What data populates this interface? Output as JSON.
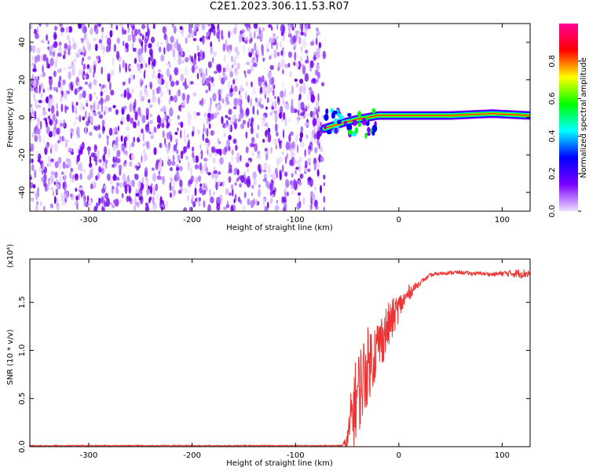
{
  "title": "C2E1.2023.306.11.53.R07",
  "chart_data": [
    {
      "type": "heatmap",
      "title": "C2E1.2023.306.11.53.R07",
      "xlabel": "Height of straight line (km)",
      "ylabel": "Frequency (Hz)",
      "xlim": [
        -357,
        127
      ],
      "ylim": [
        -50,
        50
      ],
      "xticks": [
        -300,
        -200,
        -100,
        0,
        100
      ],
      "yticks": [
        -40,
        -20,
        0,
        20,
        40
      ],
      "noise_region_x": [
        -357,
        -72
      ],
      "signal_line": [
        {
          "x": -72,
          "y": -6
        },
        {
          "x": -55,
          "y": -3
        },
        {
          "x": -40,
          "y": -1
        },
        {
          "x": -20,
          "y": 1
        },
        {
          "x": 0,
          "y": 1
        },
        {
          "x": 50,
          "y": 1
        },
        {
          "x": 90,
          "y": 2
        },
        {
          "x": 127,
          "y": 1
        }
      ],
      "colorbar": {
        "label": "Normalized spectral amplitude",
        "range": [
          0.0,
          1.0
        ],
        "ticks": [
          0.0,
          0.2,
          0.4,
          0.6,
          0.8
        ],
        "colors": [
          "#f0dfff",
          "#7b00ff",
          "#0000ff",
          "#00ffff",
          "#00ff00",
          "#ffff00",
          "#ff0000",
          "#ff0099"
        ]
      },
      "grid": false
    },
    {
      "type": "line",
      "xlabel": "Height of straight line (km)",
      "ylabel": "SNR (10 * v/v)",
      "yscale_label": "(x10⁴)",
      "xlim": [
        -357,
        127
      ],
      "ylim": [
        0,
        1.95
      ],
      "xticks": [
        -300,
        -200,
        -100,
        0,
        100
      ],
      "yticks": [
        0.0,
        0.5,
        1.0,
        1.5
      ],
      "series": [
        {
          "color": "#ee3333",
          "x": [
            -357,
            -300,
            -200,
            -100,
            -55,
            -50,
            -45,
            -40,
            -35,
            -30,
            -25,
            -20,
            -15,
            -10,
            -5,
            0,
            5,
            10,
            15,
            20,
            25,
            30,
            40,
            50,
            60,
            70,
            80,
            90,
            100,
            110,
            120,
            127
          ],
          "y": [
            0.01,
            0.01,
            0.01,
            0.01,
            0.01,
            0.05,
            0.35,
            0.55,
            0.7,
            0.85,
            0.95,
            1.05,
            1.15,
            1.25,
            1.35,
            1.45,
            1.52,
            1.6,
            1.65,
            1.7,
            1.74,
            1.78,
            1.8,
            1.81,
            1.81,
            1.8,
            1.8,
            1.79,
            1.8,
            1.8,
            1.8,
            1.8
          ],
          "noise_amp": [
            0,
            0,
            0,
            0,
            0,
            0.1,
            0.4,
            0.45,
            0.45,
            0.4,
            0.35,
            0.3,
            0.28,
            0.25,
            0.2,
            0.15,
            0.1,
            0.08,
            0.05,
            0.03,
            0.02,
            0.02,
            0.02,
            0.02,
            0.02,
            0.02,
            0.02,
            0.02,
            0.03,
            0.04,
            0.05,
            0.05
          ]
        }
      ]
    }
  ]
}
